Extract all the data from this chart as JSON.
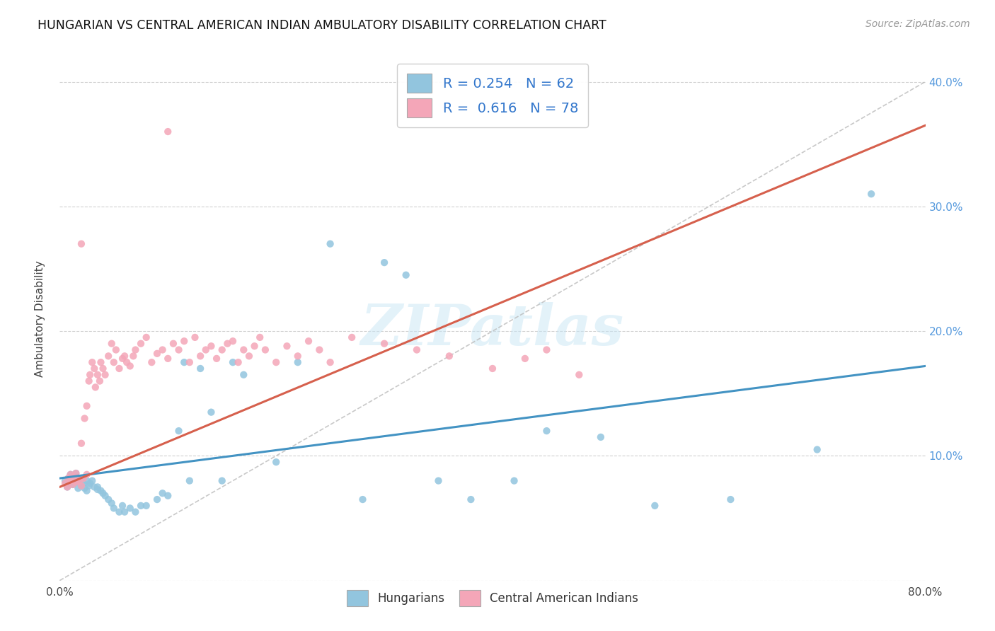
{
  "title": "HUNGARIAN VS CENTRAL AMERICAN INDIAN AMBULATORY DISABILITY CORRELATION CHART",
  "source": "Source: ZipAtlas.com",
  "ylabel": "Ambulatory Disability",
  "xlim": [
    0.0,
    0.8
  ],
  "ylim": [
    0.0,
    0.42
  ],
  "yticks": [
    0.0,
    0.1,
    0.2,
    0.3,
    0.4
  ],
  "ytick_labels": [
    "",
    "10.0%",
    "20.0%",
    "30.0%",
    "40.0%"
  ],
  "xticks": [
    0.0,
    0.2,
    0.4,
    0.6,
    0.8
  ],
  "xtick_labels": [
    "0.0%",
    "",
    "",
    "",
    "80.0%"
  ],
  "blue_R": 0.254,
  "blue_N": 62,
  "pink_R": 0.616,
  "pink_N": 78,
  "blue_color": "#92c5de",
  "pink_color": "#f4a6b8",
  "blue_line_color": "#4393c3",
  "pink_line_color": "#d6604d",
  "dashed_line_color": "#bbbbbb",
  "legend_label_blue": "Hungarians",
  "legend_label_pink": "Central American Indians",
  "watermark_text": "ZIPatlas",
  "background_color": "#ffffff",
  "grid_color": "#cccccc",
  "blue_scatter_x": [
    0.005,
    0.007,
    0.008,
    0.01,
    0.01,
    0.012,
    0.013,
    0.015,
    0.015,
    0.017,
    0.018,
    0.02,
    0.02,
    0.022,
    0.023,
    0.025,
    0.025,
    0.027,
    0.028,
    0.03,
    0.032,
    0.035,
    0.035,
    0.038,
    0.04,
    0.042,
    0.045,
    0.048,
    0.05,
    0.055,
    0.058,
    0.06,
    0.065,
    0.07,
    0.075,
    0.08,
    0.09,
    0.095,
    0.1,
    0.11,
    0.115,
    0.12,
    0.13,
    0.14,
    0.15,
    0.16,
    0.17,
    0.2,
    0.22,
    0.25,
    0.28,
    0.3,
    0.32,
    0.35,
    0.38,
    0.42,
    0.45,
    0.5,
    0.55,
    0.62,
    0.7,
    0.75
  ],
  "blue_scatter_y": [
    0.08,
    0.075,
    0.082,
    0.078,
    0.085,
    0.077,
    0.083,
    0.079,
    0.086,
    0.074,
    0.08,
    0.076,
    0.082,
    0.078,
    0.074,
    0.08,
    0.072,
    0.076,
    0.078,
    0.08,
    0.075,
    0.073,
    0.075,
    0.072,
    0.07,
    0.068,
    0.065,
    0.062,
    0.058,
    0.055,
    0.06,
    0.055,
    0.058,
    0.055,
    0.06,
    0.06,
    0.065,
    0.07,
    0.068,
    0.12,
    0.175,
    0.08,
    0.17,
    0.135,
    0.08,
    0.175,
    0.165,
    0.095,
    0.175,
    0.27,
    0.065,
    0.255,
    0.245,
    0.08,
    0.065,
    0.08,
    0.12,
    0.115,
    0.06,
    0.065,
    0.105,
    0.31
  ],
  "pink_scatter_x": [
    0.005,
    0.007,
    0.008,
    0.01,
    0.01,
    0.012,
    0.013,
    0.015,
    0.015,
    0.017,
    0.018,
    0.02,
    0.02,
    0.022,
    0.023,
    0.025,
    0.025,
    0.027,
    0.028,
    0.03,
    0.032,
    0.033,
    0.035,
    0.037,
    0.038,
    0.04,
    0.042,
    0.045,
    0.048,
    0.05,
    0.052,
    0.055,
    0.058,
    0.06,
    0.062,
    0.065,
    0.068,
    0.07,
    0.075,
    0.08,
    0.085,
    0.09,
    0.095,
    0.1,
    0.105,
    0.11,
    0.115,
    0.12,
    0.125,
    0.13,
    0.135,
    0.14,
    0.145,
    0.15,
    0.155,
    0.16,
    0.165,
    0.17,
    0.175,
    0.18,
    0.185,
    0.19,
    0.2,
    0.21,
    0.22,
    0.23,
    0.24,
    0.25,
    0.27,
    0.3,
    0.33,
    0.36,
    0.4,
    0.43,
    0.45,
    0.48,
    0.02,
    0.1
  ],
  "pink_scatter_y": [
    0.078,
    0.075,
    0.082,
    0.08,
    0.085,
    0.077,
    0.083,
    0.079,
    0.086,
    0.082,
    0.08,
    0.076,
    0.11,
    0.082,
    0.13,
    0.14,
    0.085,
    0.16,
    0.165,
    0.175,
    0.17,
    0.155,
    0.165,
    0.16,
    0.175,
    0.17,
    0.165,
    0.18,
    0.19,
    0.175,
    0.185,
    0.17,
    0.178,
    0.18,
    0.175,
    0.172,
    0.18,
    0.185,
    0.19,
    0.195,
    0.175,
    0.182,
    0.185,
    0.178,
    0.19,
    0.185,
    0.192,
    0.175,
    0.195,
    0.18,
    0.185,
    0.188,
    0.178,
    0.185,
    0.19,
    0.192,
    0.175,
    0.185,
    0.18,
    0.188,
    0.195,
    0.185,
    0.175,
    0.188,
    0.18,
    0.192,
    0.185,
    0.175,
    0.195,
    0.19,
    0.185,
    0.18,
    0.17,
    0.178,
    0.185,
    0.165,
    0.27,
    0.36
  ]
}
